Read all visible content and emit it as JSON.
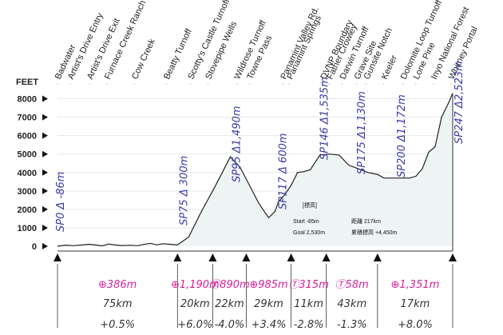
{
  "chart_data": {
    "type": "area",
    "ylabel": "FEET",
    "ylim": [
      0,
      8500
    ],
    "y_ticks": [
      "8000",
      "7000",
      "6000",
      "5000",
      "4000",
      "3000",
      "2000",
      "1000",
      "0"
    ],
    "tick_values": [
      8000,
      7000,
      6000,
      5000,
      4000,
      3000,
      2000,
      1000,
      0
    ],
    "profile_km": [
      0,
      5,
      10,
      20,
      28,
      32,
      36,
      40,
      46,
      50,
      54,
      58,
      62,
      66,
      70,
      75,
      82,
      90,
      97,
      103,
      108,
      114,
      120,
      126,
      132,
      136,
      138,
      142,
      146,
      150,
      154,
      158,
      164,
      170,
      176,
      182,
      188,
      194,
      200,
      204,
      208,
      212,
      216,
      220,
      224,
      228,
      232,
      236,
      240,
      244,
      247
    ],
    "profile_ft": [
      0,
      60,
      30,
      110,
      20,
      120,
      70,
      40,
      50,
      30,
      100,
      160,
      80,
      140,
      110,
      80,
      500,
      1900,
      3000,
      4000,
      4850,
      4300,
      3300,
      2300,
      1550,
      1900,
      2400,
      2800,
      3300,
      4000,
      4050,
      4150,
      4950,
      5000,
      4950,
      4400,
      4200,
      4000,
      3900,
      3700,
      3700,
      3700,
      3700,
      3700,
      3800,
      4200,
      5100,
      5400,
      7000,
      7700,
      8300
    ],
    "locations": [
      {
        "name": "Badwater",
        "km": 0
      },
      {
        "name": "Artist's Drive Entry",
        "km": 8
      },
      {
        "name": "Artist's Drive Exit",
        "km": 20
      },
      {
        "name": "Furnace Creek Ranch",
        "km": 31
      },
      {
        "name": "Cow Creek",
        "km": 48
      },
      {
        "name": "Beatty Turnoff",
        "km": 68
      },
      {
        "name": "Scotty's Castle Turnoff",
        "km": 83
      },
      {
        "name": "Stovepipe Wells",
        "km": 94
      },
      {
        "name": "Wildrose Turnoff",
        "km": 112
      },
      {
        "name": "Towne Pass",
        "km": 120
      },
      {
        "name": "Panamint Valley Rd.",
        "km": 141
      },
      {
        "name": "Panamint Springs",
        "km": 145
      },
      {
        "name": "DVNP Boundary",
        "km": 166
      },
      {
        "name": "Father Crowley",
        "km": 170
      },
      {
        "name": "Darwin Turnoff",
        "km": 178
      },
      {
        "name": "Grave Site",
        "km": 187
      },
      {
        "name": "Gunsite Notch",
        "km": 193
      },
      {
        "name": "Keeler",
        "km": 204
      },
      {
        "name": "Dolomite Loop Turnoff",
        "km": 216
      },
      {
        "name": "Lone Pine",
        "km": 224
      },
      {
        "name": "Inyo National Forest",
        "km": 235
      },
      {
        "name": "Whitney Portal",
        "km": 246
      }
    ],
    "annotations": [
      {
        "text": "SP0 Δ -86m",
        "km": 1
      },
      {
        "text": "SP75 Δ 300m",
        "km": 78
      },
      {
        "text": "SP95 Δ1,490m",
        "km": 111
      },
      {
        "text": "SP117 Δ 600m",
        "km": 140
      },
      {
        "text": "SP146 Δ1,535m",
        "km": 166
      },
      {
        "text": "SP175 Δ1,130m",
        "km": 189
      },
      {
        "text": "SP200 Δ1,172m",
        "km": 214
      },
      {
        "text": "SP247 Δ2,523m",
        "km": 250
      }
    ],
    "info_box": {
      "header": "[標高]",
      "start": "Start  -85m",
      "goal": "Goal  2,530m",
      "distance": "距離  217km",
      "gain": "累積標高 +4,450m"
    },
    "segments": [
      {
        "climb": "⊕386m",
        "distance": "75km",
        "grade": "+0.5%",
        "from_km": 0,
        "to_km": 75
      },
      {
        "climb": "⊕1,190m",
        "distance": "20km",
        "grade": "+6.0%",
        "from_km": 75,
        "to_km": 97
      },
      {
        "climb": "Ⓣ890m",
        "distance": "22km",
        "grade": "-4.0%",
        "from_km": 97,
        "to_km": 118
      },
      {
        "climb": "⊕985m",
        "distance": "29km",
        "grade": "+3.4%",
        "from_km": 118,
        "to_km": 146
      },
      {
        "climb": "Ⓣ315m",
        "distance": "11km",
        "grade": "-2.8%",
        "from_km": 146,
        "to_km": 168
      },
      {
        "climb": "Ⓣ58m",
        "distance": "43km",
        "grade": "-1.3%",
        "from_km": 168,
        "to_km": 200
      },
      {
        "climb": "⊕1,351m",
        "distance": "17km",
        "grade": "+8.0%",
        "from_km": 200,
        "to_km": 247
      }
    ]
  }
}
